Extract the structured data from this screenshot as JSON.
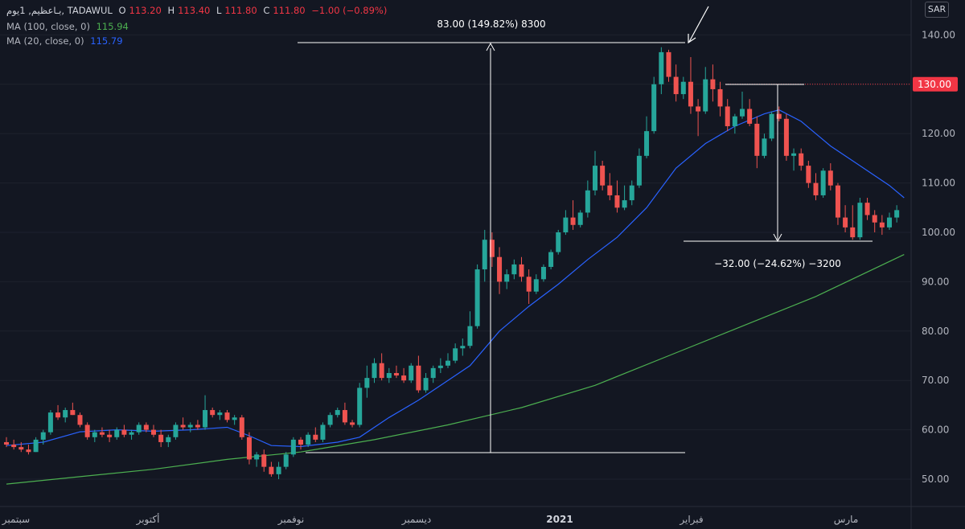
{
  "legend": {
    "symbol": "بـاعظيم, 1يوم, TADAWUL",
    "o_label": "O",
    "o_value": "113.20",
    "h_label": "H",
    "h_value": "113.40",
    "l_label": "L",
    "l_value": "111.80",
    "c_label": "C",
    "c_value": "111.80",
    "change": "−1.00 (−0.89%)",
    "ma100_label": "MA (100, close, 0)",
    "ma100_value": "115.94",
    "ma20_label": "MA (20, close, 0)",
    "ma20_value": "115.79"
  },
  "currency": "SAR",
  "colors": {
    "up": "#26a69a",
    "down": "#ef5350",
    "ma100": "#4caf50",
    "ma20": "#2962ff",
    "price_tag": "#f23645"
  },
  "chart_data": {
    "type": "candlestick",
    "ylim": [
      45,
      146
    ],
    "yticks": [
      "50.00",
      "60.00",
      "70.00",
      "80.00",
      "90.00",
      "100.00",
      "110.00",
      "120.00",
      "130.00",
      "140.00"
    ],
    "x_labels": [
      "سبتمبر",
      "أكتوبر",
      "نوفمبر",
      "ديسمبر",
      "2021",
      "فبراير",
      "مارس"
    ],
    "price_tag": "130.00",
    "annotation_up": "83.00 (149.82%) 8300",
    "annotation_down": "−32.00 (−24.62%) −3200",
    "candles": [
      [
        57.5,
        58.5,
        56.5,
        57.0
      ],
      [
        57.0,
        58.0,
        56.0,
        56.5
      ],
      [
        56.5,
        57.5,
        55.5,
        56.0
      ],
      [
        56.0,
        57.0,
        55.0,
        55.5
      ],
      [
        55.5,
        58.5,
        55.5,
        58.0
      ],
      [
        58.0,
        60.0,
        57.0,
        59.5
      ],
      [
        59.5,
        64.0,
        59.0,
        63.5
      ],
      [
        63.5,
        65.0,
        62.0,
        62.5
      ],
      [
        62.5,
        64.5,
        61.5,
        64.0
      ],
      [
        64.0,
        65.5,
        63.0,
        63.0
      ],
      [
        63.0,
        63.5,
        60.5,
        61.0
      ],
      [
        61.0,
        61.5,
        58.0,
        58.5
      ],
      [
        58.5,
        60.0,
        57.5,
        59.5
      ],
      [
        59.5,
        60.5,
        58.5,
        59.0
      ],
      [
        59.0,
        60.0,
        57.5,
        58.5
      ],
      [
        58.5,
        60.5,
        58.0,
        60.0
      ],
      [
        60.0,
        61.0,
        58.5,
        59.0
      ],
      [
        59.0,
        60.0,
        58.0,
        59.5
      ],
      [
        59.5,
        61.5,
        59.0,
        61.0
      ],
      [
        61.0,
        61.5,
        59.5,
        60.0
      ],
      [
        60.0,
        61.0,
        58.5,
        59.0
      ],
      [
        59.0,
        60.0,
        56.5,
        57.5
      ],
      [
        57.5,
        59.0,
        56.5,
        58.5
      ],
      [
        58.5,
        61.5,
        58.0,
        61.0
      ],
      [
        61.0,
        62.5,
        60.0,
        60.5
      ],
      [
        60.5,
        61.5,
        59.5,
        61.0
      ],
      [
        61.0,
        62.0,
        60.0,
        60.5
      ],
      [
        60.5,
        67.0,
        60.0,
        64.0
      ],
      [
        64.0,
        64.5,
        62.5,
        63.0
      ],
      [
        63.0,
        64.0,
        62.0,
        63.5
      ],
      [
        63.5,
        64.0,
        61.5,
        62.0
      ],
      [
        62.0,
        63.0,
        61.0,
        62.5
      ],
      [
        62.5,
        63.0,
        58.0,
        58.5
      ],
      [
        58.5,
        59.5,
        53.0,
        54.0
      ],
      [
        54.0,
        55.5,
        52.5,
        55.0
      ],
      [
        55.0,
        56.0,
        51.5,
        52.5
      ],
      [
        52.5,
        53.5,
        50.5,
        51.0
      ],
      [
        51.0,
        53.5,
        50.0,
        52.5
      ],
      [
        52.5,
        55.5,
        52.0,
        55.0
      ],
      [
        55.0,
        58.5,
        54.5,
        58.0
      ],
      [
        58.0,
        58.5,
        56.0,
        57.0
      ],
      [
        57.0,
        59.5,
        56.5,
        59.0
      ],
      [
        59.0,
        60.5,
        57.5,
        58.0
      ],
      [
        58.0,
        61.5,
        57.5,
        61.0
      ],
      [
        61.0,
        63.5,
        60.5,
        63.0
      ],
      [
        63.0,
        64.5,
        62.5,
        64.0
      ],
      [
        64.0,
        65.5,
        61.0,
        61.5
      ],
      [
        61.5,
        62.0,
        60.5,
        61.0
      ],
      [
        61.0,
        69.5,
        60.5,
        68.5
      ],
      [
        68.5,
        73.0,
        66.5,
        70.5
      ],
      [
        70.5,
        74.5,
        69.5,
        73.5
      ],
      [
        73.5,
        75.5,
        70.0,
        70.5
      ],
      [
        70.5,
        72.5,
        69.5,
        71.5
      ],
      [
        71.5,
        73.0,
        70.5,
        71.0
      ],
      [
        71.0,
        72.5,
        69.5,
        70.0
      ],
      [
        70.0,
        73.5,
        69.5,
        73.0
      ],
      [
        73.0,
        75.0,
        67.5,
        68.0
      ],
      [
        68.0,
        71.5,
        67.5,
        70.5
      ],
      [
        70.5,
        73.0,
        69.5,
        72.5
      ],
      [
        72.5,
        74.5,
        71.5,
        73.0
      ],
      [
        73.0,
        75.5,
        72.5,
        74.0
      ],
      [
        74.0,
        77.5,
        73.5,
        76.5
      ],
      [
        76.5,
        78.5,
        75.0,
        77.0
      ],
      [
        77.0,
        84.0,
        76.5,
        81.0
      ],
      [
        81.0,
        93.5,
        80.5,
        92.5
      ],
      [
        92.5,
        100.5,
        90.0,
        98.5
      ],
      [
        98.5,
        100.0,
        93.0,
        95.0
      ],
      [
        95.0,
        97.0,
        87.5,
        90.0
      ],
      [
        90.0,
        92.5,
        88.5,
        91.5
      ],
      [
        91.5,
        94.5,
        90.5,
        93.5
      ],
      [
        93.5,
        95.0,
        90.0,
        91.0
      ],
      [
        91.0,
        92.5,
        85.5,
        88.0
      ],
      [
        88.0,
        91.5,
        87.5,
        90.5
      ],
      [
        90.5,
        93.5,
        90.0,
        93.0
      ],
      [
        93.0,
        96.5,
        92.5,
        96.0
      ],
      [
        96.0,
        100.5,
        95.5,
        100.0
      ],
      [
        100.0,
        104.5,
        99.5,
        103.0
      ],
      [
        103.0,
        106.5,
        100.5,
        101.5
      ],
      [
        101.5,
        104.5,
        101.0,
        104.0
      ],
      [
        104.0,
        110.5,
        103.0,
        108.5
      ],
      [
        108.5,
        116.5,
        107.5,
        113.5
      ],
      [
        113.5,
        114.5,
        108.5,
        109.5
      ],
      [
        109.5,
        112.0,
        106.5,
        107.5
      ],
      [
        107.5,
        110.5,
        104.0,
        105.0
      ],
      [
        105.0,
        109.5,
        104.5,
        106.5
      ],
      [
        106.5,
        110.5,
        105.5,
        109.5
      ],
      [
        109.5,
        117.0,
        109.0,
        115.5
      ],
      [
        115.5,
        123.5,
        115.0,
        120.5
      ],
      [
        120.5,
        131.5,
        120.0,
        130.0
      ],
      [
        130.0,
        137.5,
        128.0,
        136.5
      ],
      [
        136.5,
        137.0,
        130.5,
        131.5
      ],
      [
        131.5,
        134.0,
        126.5,
        128.0
      ],
      [
        128.0,
        131.5,
        127.0,
        130.5
      ],
      [
        130.5,
        135.5,
        124.0,
        125.5
      ],
      [
        125.5,
        127.0,
        119.5,
        124.5
      ],
      [
        124.5,
        133.5,
        124.0,
        131.0
      ],
      [
        131.0,
        134.0,
        126.5,
        129.0
      ],
      [
        129.0,
        130.5,
        123.5,
        125.5
      ],
      [
        125.5,
        127.0,
        120.5,
        121.5
      ],
      [
        121.5,
        124.0,
        120.0,
        123.5
      ],
      [
        123.5,
        128.5,
        123.0,
        125.0
      ],
      [
        125.0,
        127.0,
        121.5,
        122.0
      ],
      [
        122.0,
        123.5,
        113.0,
        115.5
      ],
      [
        115.5,
        120.0,
        115.0,
        119.0
      ],
      [
        119.0,
        124.5,
        118.5,
        124.0
      ],
      [
        124.0,
        125.5,
        122.5,
        123.0
      ],
      [
        123.0,
        124.0,
        114.5,
        115.5
      ],
      [
        115.5,
        117.0,
        112.5,
        116.0
      ],
      [
        116.0,
        117.0,
        112.5,
        113.5
      ],
      [
        113.5,
        114.5,
        109.0,
        110.0
      ],
      [
        110.0,
        112.0,
        106.5,
        107.5
      ],
      [
        107.5,
        113.0,
        107.0,
        112.5
      ],
      [
        112.5,
        114.0,
        108.5,
        109.5
      ],
      [
        109.5,
        110.0,
        101.5,
        103.0
      ],
      [
        103.0,
        105.5,
        100.0,
        101.0
      ],
      [
        101.0,
        105.5,
        98.5,
        99.0
      ],
      [
        99.0,
        107.0,
        98.5,
        106.0
      ],
      [
        106.0,
        107.0,
        102.5,
        103.5
      ],
      [
        103.5,
        104.5,
        100.0,
        102.0
      ],
      [
        102.0,
        103.5,
        99.5,
        101.0
      ],
      [
        101.0,
        104.0,
        100.5,
        103.0
      ],
      [
        103.0,
        105.5,
        102.0,
        104.5
      ]
    ],
    "ma20": [
      [
        0,
        56.8
      ],
      [
        5,
        57.5
      ],
      [
        10,
        59.6
      ],
      [
        15,
        60.0
      ],
      [
        20,
        59.7
      ],
      [
        25,
        60.0
      ],
      [
        30,
        60.5
      ],
      [
        33,
        58.8
      ],
      [
        36,
        56.8
      ],
      [
        40,
        56.6
      ],
      [
        45,
        57.5
      ],
      [
        48,
        58.5
      ],
      [
        52,
        62.5
      ],
      [
        56,
        66.0
      ],
      [
        60,
        70.0
      ],
      [
        63,
        73.0
      ],
      [
        67,
        80.0
      ],
      [
        71,
        85.0
      ],
      [
        75,
        89.5
      ],
      [
        79,
        94.5
      ],
      [
        83,
        99.0
      ],
      [
        87,
        105.0
      ],
      [
        91,
        113.0
      ],
      [
        95,
        118.0
      ],
      [
        99,
        121.5
      ],
      [
        103,
        124.0
      ],
      [
        105,
        124.8
      ],
      [
        108,
        122.5
      ],
      [
        112,
        117.5
      ],
      [
        116,
        113.5
      ],
      [
        120,
        109.5
      ],
      [
        122,
        107.0
      ]
    ],
    "ma100": [
      [
        0,
        49.0
      ],
      [
        10,
        50.5
      ],
      [
        20,
        52.0
      ],
      [
        30,
        54.0
      ],
      [
        40,
        55.5
      ],
      [
        50,
        58.0
      ],
      [
        60,
        61.0
      ],
      [
        70,
        64.5
      ],
      [
        80,
        69.0
      ],
      [
        90,
        75.0
      ],
      [
        100,
        81.0
      ],
      [
        110,
        87.0
      ],
      [
        122,
        95.5
      ]
    ]
  }
}
